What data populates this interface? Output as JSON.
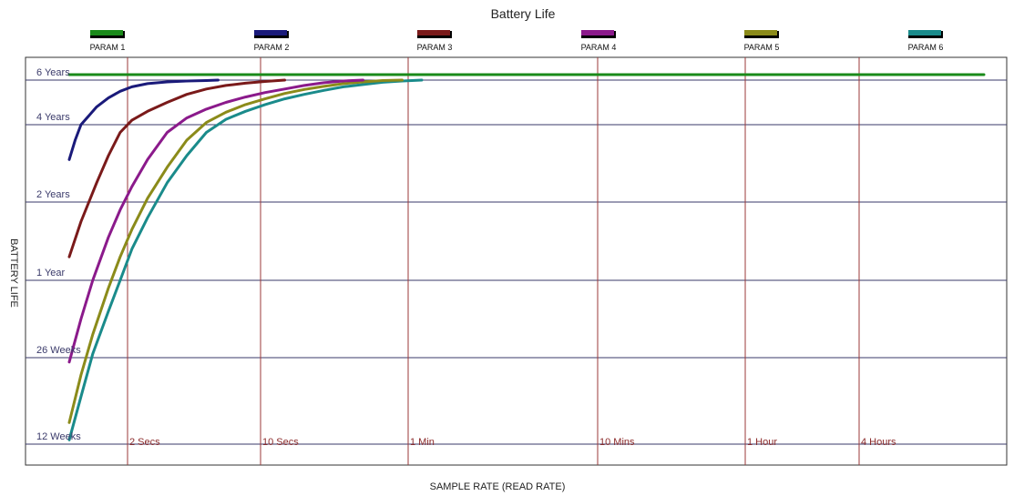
{
  "chart_data": {
    "type": "line",
    "title": "Battery Life",
    "xlabel": "SAMPLE RATE (READ RATE)",
    "ylabel": "BATTERY LIFE",
    "x_ticks": [
      "2 Secs",
      "10 Secs",
      "1 Min",
      "10 Mins",
      "1 Hour",
      "4 Hours"
    ],
    "y_ticks": [
      "6 Years",
      "4 Years",
      "2 Years",
      "1 Year",
      "26 Weeks",
      "12 Weeks"
    ],
    "legend_position": "top",
    "grid": true,
    "series": [
      {
        "name": "PARAM 1",
        "color": "#1a8a1a",
        "points": [
          [
            0.0,
            5.95
          ],
          [
            5.1,
            5.95
          ]
        ]
      },
      {
        "name": "PARAM 2",
        "color": "#1a1a7a",
        "points": [
          [
            0.0,
            3.55
          ],
          [
            0.15,
            3.8
          ],
          [
            0.3,
            4.0
          ],
          [
            0.5,
            4.2
          ],
          [
            0.7,
            4.4
          ],
          [
            1.0,
            4.6
          ],
          [
            1.3,
            4.75
          ],
          [
            1.6,
            4.85
          ],
          [
            2.0,
            4.92
          ],
          [
            2.5,
            4.96
          ],
          [
            3.0,
            4.98
          ],
          [
            3.5,
            4.99
          ],
          [
            3.8,
            5.0
          ]
        ]
      },
      {
        "name": "PARAM 3",
        "color": "#7a1a1a",
        "points": [
          [
            0.0,
            2.3
          ],
          [
            0.3,
            2.75
          ],
          [
            0.7,
            3.25
          ],
          [
            1.0,
            3.6
          ],
          [
            1.3,
            3.9
          ],
          [
            1.6,
            4.1
          ],
          [
            2.0,
            4.3
          ],
          [
            2.5,
            4.5
          ],
          [
            3.0,
            4.68
          ],
          [
            3.5,
            4.8
          ],
          [
            4.0,
            4.88
          ],
          [
            4.5,
            4.93
          ],
          [
            5.0,
            4.97
          ],
          [
            5.5,
            5.0
          ]
        ]
      },
      {
        "name": "PARAM 4",
        "color": "#8b1a8b",
        "points": [
          [
            0.0,
            0.95
          ],
          [
            0.3,
            1.5
          ],
          [
            0.6,
            2.0
          ],
          [
            1.0,
            2.55
          ],
          [
            1.3,
            2.9
          ],
          [
            1.6,
            3.2
          ],
          [
            2.0,
            3.55
          ],
          [
            2.5,
            3.9
          ],
          [
            3.0,
            4.15
          ],
          [
            3.5,
            4.35
          ],
          [
            4.0,
            4.5
          ],
          [
            4.5,
            4.62
          ],
          [
            5.0,
            4.72
          ],
          [
            5.5,
            4.8
          ],
          [
            6.0,
            4.88
          ],
          [
            6.5,
            4.94
          ],
          [
            7.0,
            4.98
          ],
          [
            7.5,
            5.0
          ]
        ]
      },
      {
        "name": "PARAM 5",
        "color": "#8b8b1a",
        "points": [
          [
            0.0,
            0.25
          ],
          [
            0.3,
            0.8
          ],
          [
            0.6,
            1.3
          ],
          [
            1.0,
            1.9
          ],
          [
            1.3,
            2.3
          ],
          [
            1.6,
            2.65
          ],
          [
            2.0,
            3.05
          ],
          [
            2.5,
            3.45
          ],
          [
            3.0,
            3.8
          ],
          [
            3.5,
            4.05
          ],
          [
            4.0,
            4.28
          ],
          [
            4.5,
            4.45
          ],
          [
            5.0,
            4.58
          ],
          [
            5.5,
            4.7
          ],
          [
            6.0,
            4.79
          ],
          [
            6.5,
            4.86
          ],
          [
            7.0,
            4.92
          ],
          [
            7.5,
            4.96
          ],
          [
            8.0,
            4.99
          ],
          [
            8.5,
            5.0
          ]
        ]
      },
      {
        "name": "PARAM 6",
        "color": "#1a8b8b",
        "points": [
          [
            0.0,
            0.05
          ],
          [
            0.3,
            0.55
          ],
          [
            0.6,
            1.05
          ],
          [
            1.0,
            1.6
          ],
          [
            1.3,
            2.0
          ],
          [
            1.6,
            2.4
          ],
          [
            2.0,
            2.8
          ],
          [
            2.5,
            3.25
          ],
          [
            3.0,
            3.6
          ],
          [
            3.5,
            3.9
          ],
          [
            4.0,
            4.12
          ],
          [
            4.5,
            4.3
          ],
          [
            5.0,
            4.45
          ],
          [
            5.5,
            4.58
          ],
          [
            6.0,
            4.68
          ],
          [
            6.5,
            4.77
          ],
          [
            7.0,
            4.85
          ],
          [
            7.5,
            4.9
          ],
          [
            8.0,
            4.95
          ],
          [
            8.5,
            4.98
          ],
          [
            9.0,
            5.0
          ]
        ]
      }
    ]
  }
}
